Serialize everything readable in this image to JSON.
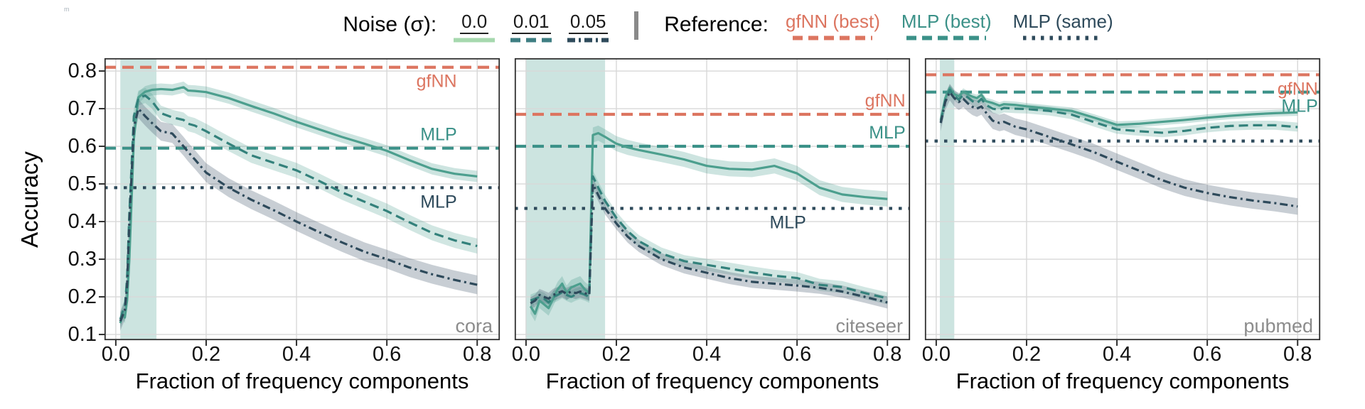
{
  "watermark": "m",
  "legend": {
    "noise_label": "Noise (σ):",
    "noise_items": [
      {
        "label": "0.0",
        "style": "solid",
        "color": "#a6d8ae"
      },
      {
        "label": "0.01",
        "style": "dashed",
        "color": "#3e7e82"
      },
      {
        "label": "0.05",
        "style": "dashdot",
        "color": "#2e4a5b"
      }
    ],
    "reference_label": "Reference:",
    "reference_items": [
      {
        "label": "gfNN (best)",
        "style": "dashed",
        "color": "#dc7560"
      },
      {
        "label": "MLP (best)",
        "style": "dashed",
        "color": "#3b9188"
      },
      {
        "label": "MLP (same)",
        "style": "dotted",
        "color": "#2e4a5b"
      }
    ]
  },
  "axes": {
    "ylabel": "Accuracy",
    "xlabel": "Fraction of frequency components",
    "ytick_values": [
      0.8,
      0.7,
      0.6,
      0.5,
      0.4,
      0.3,
      0.2,
      0.1
    ],
    "ytick_labels": [
      "0.8",
      "0.7",
      "0.6",
      "0.5",
      "0.4",
      "0.3",
      "0.2",
      "0.1"
    ],
    "xtick_values": [
      0.0,
      0.2,
      0.4,
      0.6,
      0.8
    ],
    "xtick_labels": [
      "0.0",
      "0.2",
      "0.4",
      "0.6",
      "0.8"
    ],
    "xlim": [
      -0.025,
      0.85
    ],
    "ylim": [
      0.085,
      0.834
    ],
    "grid": true
  },
  "colors": {
    "grid": "#d8d8d8",
    "border": "#2f2f2f",
    "highlight_band": "rgba(141,196,186,0.45)",
    "dataset_label": "#8c8c8c",
    "gfnn_ref": "#dc7560",
    "mlp_best_ref": "#3b9188",
    "mlp_same_ref": "#2e4a5b"
  },
  "chart_data": [
    {
      "type": "line",
      "dataset": "cora",
      "highlight_band": [
        0.01,
        0.09
      ],
      "references": [
        {
          "name": "gfNN (best)",
          "value": 0.81,
          "color": "#dc7560",
          "style": "dashed"
        },
        {
          "name": "MLP (best)",
          "value": 0.595,
          "color": "#3b9188",
          "style": "dashed"
        },
        {
          "name": "MLP (same)",
          "value": 0.49,
          "color": "#2e4a5b",
          "style": "dotted"
        }
      ],
      "annotations": [
        {
          "text": "gfNN",
          "color": "#dc7560",
          "y": 0.81,
          "x": 0.755,
          "position": "below"
        },
        {
          "text": "MLP",
          "color": "#3b9188",
          "y": 0.595,
          "x": 0.755,
          "position": "above"
        },
        {
          "text": "MLP",
          "color": "#2e4a5b",
          "y": 0.49,
          "x": 0.755,
          "position": "below"
        }
      ],
      "x": [
        0.01,
        0.015,
        0.02,
        0.025,
        0.03,
        0.04,
        0.05,
        0.065,
        0.08,
        0.1,
        0.125,
        0.15,
        0.16,
        0.175,
        0.2,
        0.25,
        0.3,
        0.35,
        0.4,
        0.45,
        0.5,
        0.55,
        0.6,
        0.65,
        0.7,
        0.75,
        0.8
      ],
      "series": [
        {
          "name": "noise 0.0",
          "style": "solid",
          "color": "#4c9f8e",
          "band_color": "rgba(76,159,142,0.28)",
          "band": 0.015,
          "y": [
            0.13,
            0.155,
            0.145,
            0.19,
            0.3,
            0.62,
            0.73,
            0.745,
            0.75,
            0.752,
            0.75,
            0.757,
            0.748,
            0.747,
            0.744,
            0.728,
            0.707,
            0.687,
            0.665,
            0.645,
            0.625,
            0.607,
            0.588,
            0.563,
            0.54,
            0.527,
            0.52
          ]
        },
        {
          "name": "noise 0.01",
          "style": "dashed",
          "color": "#33817b",
          "band_color": "rgba(76,159,142,0.26)",
          "band": 0.02,
          "y": [
            0.14,
            0.16,
            0.17,
            0.25,
            0.42,
            0.68,
            0.728,
            0.735,
            0.72,
            0.688,
            0.677,
            0.67,
            0.66,
            0.655,
            0.64,
            0.607,
            0.576,
            0.556,
            0.536,
            0.508,
            0.478,
            0.453,
            0.428,
            0.398,
            0.37,
            0.35,
            0.335
          ]
        },
        {
          "name": "noise 0.05",
          "style": "dashdot",
          "color": "#2e4a5b",
          "band_color": "rgba(84,102,120,0.32)",
          "band": 0.025,
          "y": [
            0.135,
            0.15,
            0.165,
            0.23,
            0.4,
            0.65,
            0.7,
            0.68,
            0.662,
            0.64,
            0.634,
            0.6,
            0.585,
            0.565,
            0.53,
            0.49,
            0.458,
            0.43,
            0.4,
            0.372,
            0.345,
            0.32,
            0.3,
            0.278,
            0.26,
            0.245,
            0.232
          ]
        }
      ]
    },
    {
      "type": "line",
      "dataset": "citeseer",
      "highlight_band": [
        0.0,
        0.175
      ],
      "references": [
        {
          "name": "gfNN (best)",
          "value": 0.685,
          "color": "#dc7560",
          "style": "dashed"
        },
        {
          "name": "MLP (best)",
          "value": 0.6,
          "color": "#3b9188",
          "style": "dashed"
        },
        {
          "name": "MLP (same)",
          "value": 0.435,
          "color": "#2e4a5b",
          "style": "dotted"
        }
      ],
      "annotations": [
        {
          "text": "gfNN",
          "color": "#dc7560",
          "y": 0.685,
          "x": 0.84,
          "position": "above"
        },
        {
          "text": "MLP",
          "color": "#3b9188",
          "y": 0.6,
          "x": 0.84,
          "position": "above"
        },
        {
          "text": "MLP",
          "color": "#2e4a5b",
          "y": 0.435,
          "x": 0.62,
          "position": "below"
        }
      ],
      "x": [
        0.01,
        0.02,
        0.03,
        0.04,
        0.05,
        0.06,
        0.07,
        0.08,
        0.09,
        0.1,
        0.11,
        0.12,
        0.13,
        0.14,
        0.148,
        0.16,
        0.175,
        0.2,
        0.225,
        0.25,
        0.3,
        0.35,
        0.4,
        0.45,
        0.5,
        0.55,
        0.6,
        0.65,
        0.7,
        0.75,
        0.8
      ],
      "series": [
        {
          "name": "noise 0.0",
          "style": "solid",
          "color": "#4c9f8e",
          "band_color": "rgba(76,159,142,0.28)",
          "band": 0.02,
          "y": [
            0.175,
            0.155,
            0.19,
            0.18,
            0.17,
            0.195,
            0.22,
            0.235,
            0.21,
            0.225,
            0.23,
            0.235,
            0.22,
            0.21,
            0.63,
            0.635,
            0.625,
            0.607,
            0.597,
            0.59,
            0.578,
            0.565,
            0.548,
            0.54,
            0.538,
            0.548,
            0.528,
            0.49,
            0.472,
            0.465,
            0.46
          ]
        },
        {
          "name": "noise 0.01",
          "style": "dashed",
          "color": "#33817b",
          "band_color": "rgba(76,159,142,0.26)",
          "band": 0.016,
          "y": [
            0.19,
            0.195,
            0.2,
            0.195,
            0.185,
            0.2,
            0.205,
            0.212,
            0.205,
            0.2,
            0.206,
            0.21,
            0.206,
            0.2,
            0.52,
            0.49,
            0.455,
            0.41,
            0.375,
            0.348,
            0.315,
            0.295,
            0.285,
            0.275,
            0.265,
            0.256,
            0.25,
            0.232,
            0.226,
            0.21,
            0.196
          ]
        },
        {
          "name": "noise 0.05",
          "style": "dashdot",
          "color": "#2e4a5b",
          "band_color": "rgba(84,102,120,0.32)",
          "band": 0.016,
          "y": [
            0.183,
            0.19,
            0.205,
            0.2,
            0.195,
            0.205,
            0.21,
            0.215,
            0.208,
            0.214,
            0.21,
            0.214,
            0.21,
            0.205,
            0.5,
            0.47,
            0.435,
            0.395,
            0.36,
            0.335,
            0.3,
            0.278,
            0.264,
            0.25,
            0.24,
            0.235,
            0.23,
            0.224,
            0.214,
            0.2,
            0.185
          ]
        }
      ]
    },
    {
      "type": "line",
      "dataset": "pubmed",
      "highlight_band": [
        0.008,
        0.04
      ],
      "references": [
        {
          "name": "gfNN (best)",
          "value": 0.79,
          "color": "#dc7560",
          "style": "dashed"
        },
        {
          "name": "MLP (best)",
          "value": 0.744,
          "color": "#3b9188",
          "style": "dashed"
        },
        {
          "name": "MLP (same)",
          "value": 0.614,
          "color": "#2e4a5b",
          "style": "dotted"
        }
      ],
      "annotations": [
        {
          "text": "gfNN",
          "color": "#dc7560",
          "y": 0.79,
          "x": 0.845,
          "position": "below"
        },
        {
          "text": "MLP",
          "color": "#3b9188",
          "y": 0.744,
          "x": 0.845,
          "position": "below"
        }
      ],
      "x": [
        0.01,
        0.02,
        0.03,
        0.04,
        0.05,
        0.06,
        0.07,
        0.08,
        0.09,
        0.1,
        0.11,
        0.125,
        0.14,
        0.15,
        0.175,
        0.2,
        0.25,
        0.3,
        0.35,
        0.4,
        0.45,
        0.5,
        0.55,
        0.6,
        0.65,
        0.7,
        0.75,
        0.8
      ],
      "series": [
        {
          "name": "noise 0.0",
          "style": "solid",
          "color": "#4c9f8e",
          "band_color": "rgba(76,159,142,0.28)",
          "band": 0.009,
          "y": [
            0.67,
            0.728,
            0.755,
            0.738,
            0.733,
            0.745,
            0.738,
            0.732,
            0.728,
            0.737,
            0.72,
            0.715,
            0.708,
            0.712,
            0.71,
            0.706,
            0.7,
            0.694,
            0.676,
            0.657,
            0.66,
            0.665,
            0.67,
            0.676,
            0.681,
            0.685,
            0.688,
            0.69
          ]
        },
        {
          "name": "noise 0.01",
          "style": "dashed",
          "color": "#33817b",
          "band_color": "rgba(76,159,142,0.26)",
          "band": 0.012,
          "y": [
            0.665,
            0.722,
            0.75,
            0.733,
            0.724,
            0.737,
            0.73,
            0.72,
            0.714,
            0.726,
            0.71,
            0.7,
            0.697,
            0.702,
            0.7,
            0.699,
            0.694,
            0.684,
            0.664,
            0.645,
            0.64,
            0.636,
            0.641,
            0.649,
            0.654,
            0.656,
            0.656,
            0.651
          ]
        },
        {
          "name": "noise 0.05",
          "style": "dashdot",
          "color": "#2e4a5b",
          "band_color": "rgba(84,102,120,0.32)",
          "band": 0.022,
          "y": [
            0.662,
            0.718,
            0.744,
            0.728,
            0.718,
            0.726,
            0.714,
            0.705,
            0.7,
            0.706,
            0.69,
            0.668,
            0.662,
            0.665,
            0.652,
            0.645,
            0.625,
            0.605,
            0.584,
            0.559,
            0.535,
            0.51,
            0.49,
            0.476,
            0.465,
            0.456,
            0.449,
            0.44
          ]
        }
      ]
    }
  ]
}
